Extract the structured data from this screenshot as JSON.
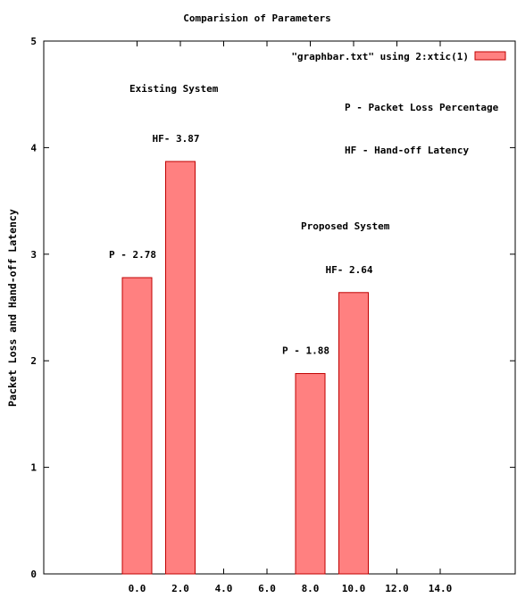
{
  "chart_data": {
    "type": "bar",
    "title": "Comparision of Parameters",
    "xlabel": "",
    "ylabel": "Packet Loss and Hand-off Latency",
    "xlim": [
      -4,
      18
    ],
    "ylim": [
      0,
      5
    ],
    "x_ticks": [
      "0.0",
      "2.0",
      "4.0",
      "6.0",
      "8.0",
      "10.0",
      "12.0",
      "14.0"
    ],
    "y_ticks": [
      "0",
      "1",
      "2",
      "3",
      "4",
      "5"
    ],
    "legend": {
      "label": "\"graphbar.txt\" using 2:xtic(1)",
      "color": "#ff8080",
      "position": "top-right"
    },
    "bars": [
      {
        "x": 0,
        "value": 2.78,
        "label": "P - 2.78"
      },
      {
        "x": 2,
        "value": 3.87,
        "label": "HF- 3.87"
      },
      {
        "x": 8,
        "value": 1.88,
        "label": "P - 1.88"
      },
      {
        "x": 10,
        "value": 2.64,
        "label": "HF- 2.64"
      }
    ],
    "bar_color": "#ff8080",
    "annotations": [
      "Existing System",
      "P - Packet Loss Percentage",
      "HF - Hand-off Latency",
      "Proposed System"
    ]
  }
}
